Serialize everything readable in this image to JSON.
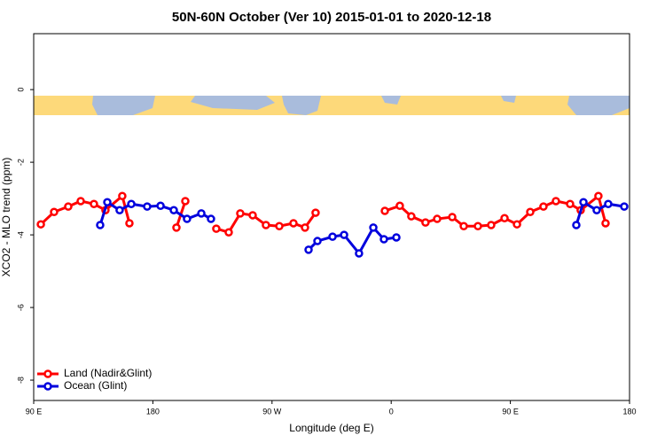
{
  "chart_data": {
    "type": "line",
    "title": "50N-60N October (Ver 10)   2015-01-01 to 2020-12-18",
    "x_label": "Longitude (deg E)",
    "y_label": "XCO2 - MLO trend (ppm)",
    "xlim": [
      90,
      540
    ],
    "ylim": [
      -8.56,
      1.54
    ],
    "xticks": [
      {
        "value": 90,
        "label": "90 E"
      },
      180,
      {
        "value": 270,
        "label": "90 W"
      },
      {
        "value": 360,
        "label": "0"
      },
      {
        "value": 450,
        "label": "90 E"
      },
      {
        "value": 540,
        "label": "180"
      }
    ],
    "yticks": [
      0,
      -2,
      -4,
      -6,
      -8
    ],
    "legend": "bottom-left",
    "series": [
      {
        "name": "Land (Nadir&Glint)",
        "color": "#ff0000",
        "x": [
          95.4,
          105.4,
          116.1,
          125.5,
          135.5,
          144.2,
          156.9,
          162.3,
          null,
          197.8,
          204.5,
          null,
          227.9,
          237.3,
          246.0,
          255.4,
          265.4,
          275.5,
          286.2,
          294.9,
          302.9,
          null,
          355.2,
          366.5,
          375.2,
          385.9,
          394.7,
          406.1,
          414.8,
          425.5,
          435.5,
          445.6,
          455.0,
          465.0,
          475.0,
          484.4,
          495.1,
          503.1,
          516.5,
          521.9
        ],
        "values": [
          -3.71,
          -3.37,
          -3.22,
          -3.07,
          -3.15,
          -3.32,
          -2.93,
          -3.68,
          null,
          -3.8,
          -3.07,
          null,
          -3.83,
          -3.93,
          -3.41,
          -3.46,
          -3.73,
          -3.76,
          -3.68,
          -3.8,
          -3.39,
          null,
          -3.34,
          -3.2,
          -3.49,
          -3.66,
          -3.56,
          -3.51,
          -3.76,
          -3.76,
          -3.73,
          -3.54,
          -3.71,
          -3.37,
          -3.22,
          -3.07,
          -3.15,
          -3.32,
          -2.93,
          -3.68
        ]
      },
      {
        "name": "Ocean (Glint)",
        "color": "#0000dd",
        "x": [
          140.2,
          145.6,
          154.9,
          163.7,
          175.7,
          185.8,
          195.8,
          205.8,
          216.6,
          223.9,
          null,
          297.6,
          304.3,
          315.7,
          324.4,
          335.7,
          346.5,
          354.5,
          363.9,
          null,
          499.8,
          505.2,
          515.2,
          523.9,
          536.0
        ],
        "values": [
          -3.73,
          -3.1,
          -3.32,
          -3.15,
          -3.22,
          -3.2,
          -3.32,
          -3.56,
          -3.41,
          -3.56,
          null,
          -4.41,
          -4.17,
          -4.05,
          -4.0,
          -4.51,
          -3.8,
          -4.12,
          -4.07,
          null,
          -3.73,
          -3.1,
          -3.32,
          -3.15,
          -3.22
        ]
      }
    ]
  }
}
